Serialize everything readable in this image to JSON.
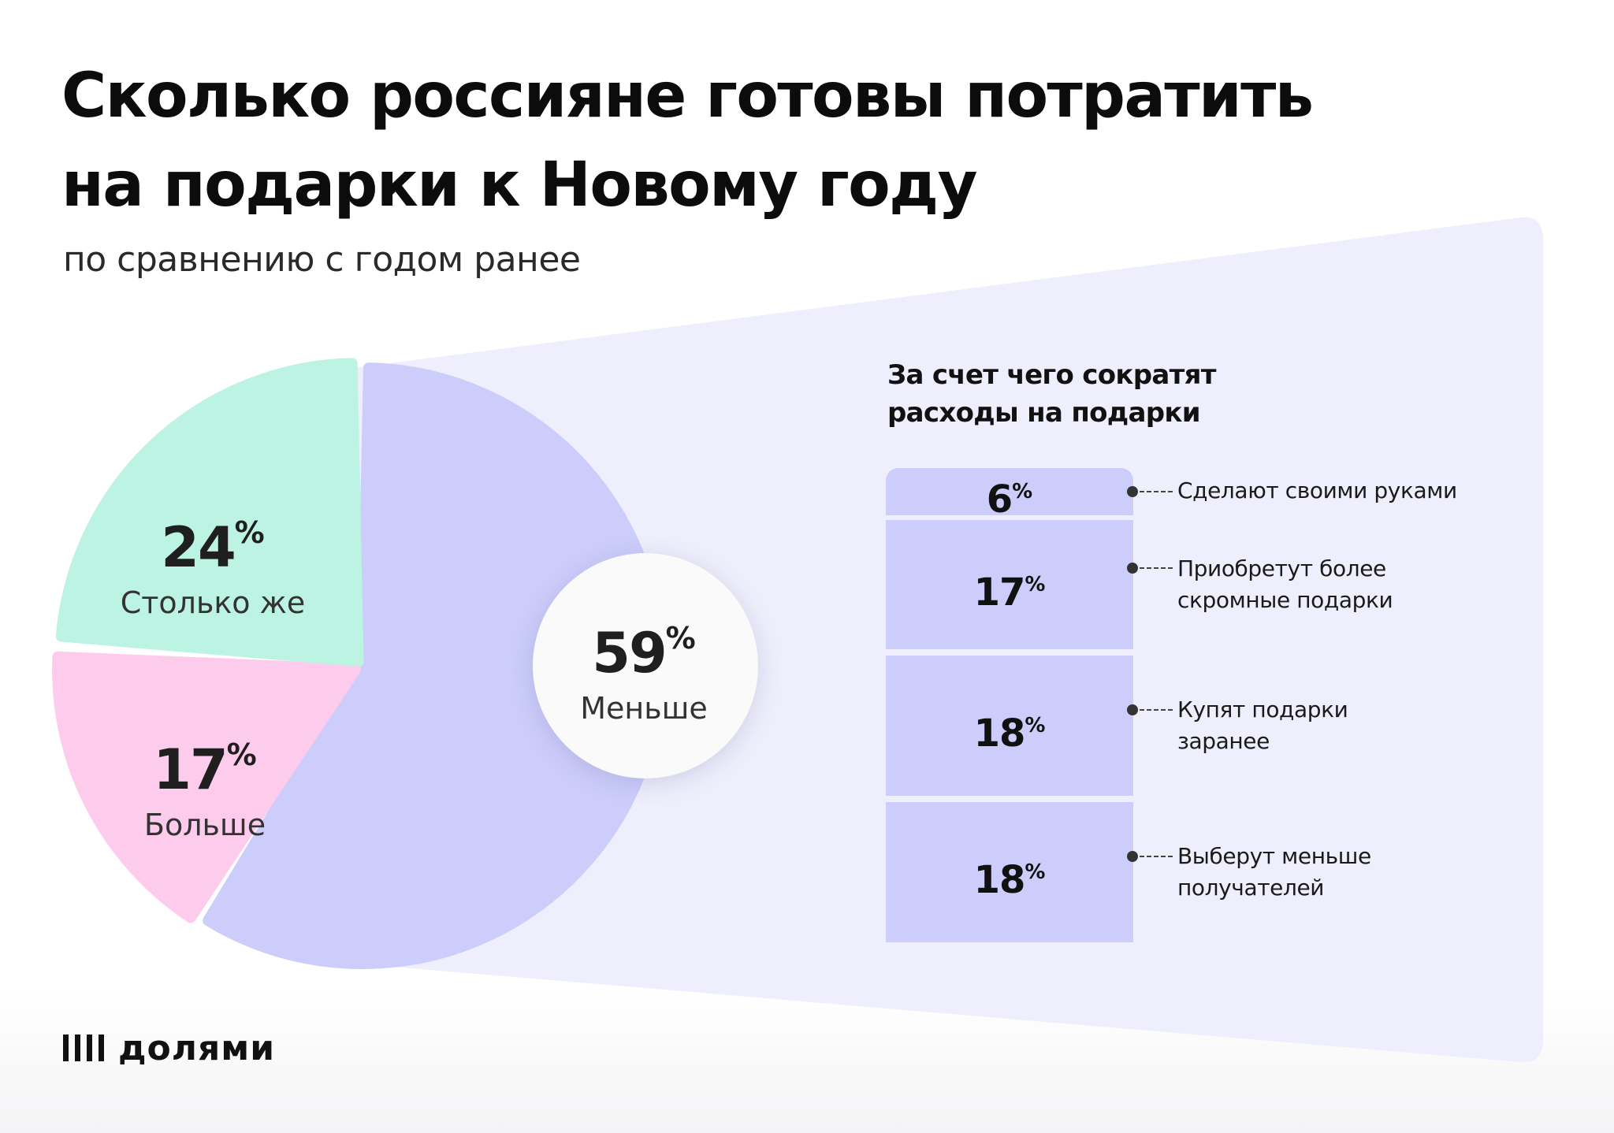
{
  "title": "Сколько россияне готовы потратить на подарки к Новому году",
  "subtitle": "по сравнению с годом ранее",
  "percent_sign": "%",
  "colors": {
    "background_panel": "#eeeefc",
    "less": "#cccdfa",
    "same": "#bcf3e3",
    "more": "#fdcbec"
  },
  "chart_data": [
    {
      "type": "pie",
      "title": "Сколько россияне готовы потратить на подарки к Новому году",
      "subtitle": "по сравнению с годом ранее",
      "unit": "%",
      "slices": [
        {
          "label": "Меньше",
          "value": 59,
          "display": "59",
          "color": "#cccdfa"
        },
        {
          "label": "Больше",
          "value": 17,
          "display": "17",
          "color": "#fdcbec"
        },
        {
          "label": "Столько же",
          "value": 24,
          "display": "24",
          "color": "#bcf3e3"
        }
      ]
    },
    {
      "type": "bar",
      "stacked": true,
      "title": "За счет чего сократят расходы на подарки",
      "unit": "%",
      "categories": [
        "Сделают своими руками",
        "Приобретут более скромные подарки",
        "Купят подарки заранее",
        "Выберут меньше получателей"
      ],
      "values": [
        6,
        17,
        18,
        18
      ],
      "display": [
        "6",
        "17",
        "18",
        "18"
      ]
    }
  ],
  "reasons": [
    {
      "lines": [
        "Сделают своими руками"
      ]
    },
    {
      "lines": [
        "Приобретут более",
        "скромные подарки"
      ]
    },
    {
      "lines": [
        "Купят подарки",
        "заранее"
      ]
    },
    {
      "lines": [
        "Выберут меньше",
        "получателей"
      ]
    }
  ],
  "logo": {
    "brand": "долями",
    "icon": "four-bars-logo-icon"
  }
}
